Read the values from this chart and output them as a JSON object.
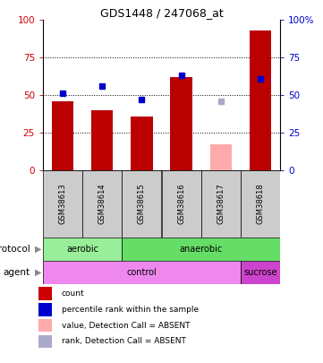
{
  "title": "GDS1448 / 247068_at",
  "samples": [
    "GSM38613",
    "GSM38614",
    "GSM38615",
    "GSM38616",
    "GSM38617",
    "GSM38618"
  ],
  "red_bars": [
    46,
    40,
    36,
    62,
    0,
    93
  ],
  "pink_bars": [
    0,
    0,
    0,
    0,
    17,
    0
  ],
  "blue_squares": [
    51,
    56,
    47,
    63,
    null,
    61
  ],
  "lavender_squares": [
    null,
    null,
    null,
    null,
    46,
    null
  ],
  "ylim": [
    0,
    100
  ],
  "yticks": [
    0,
    25,
    50,
    75,
    100
  ],
  "left_ytick_color": "#cc0000",
  "right_ytick_color": "#0000cc",
  "bar_color": "#bb0000",
  "pink_bar_color": "#ffaaaa",
  "blue_sq_color": "#0000cc",
  "lavender_sq_color": "#aaaacc",
  "protocol_aerobic_color": "#99ee99",
  "protocol_anaerobic_color": "#66dd66",
  "agent_control_color": "#ee88ee",
  "agent_sucrose_color": "#cc44cc",
  "sample_box_color": "#cccccc",
  "protocol_label": "protocol",
  "agent_label": "agent",
  "aerobic_label": "aerobic",
  "anaerobic_label": "anaerobic",
  "control_label": "control",
  "sucrose_label": "sucrose",
  "legend_items": [
    {
      "color": "#cc0000",
      "label": "count"
    },
    {
      "color": "#0000cc",
      "label": "percentile rank within the sample"
    },
    {
      "color": "#ffaaaa",
      "label": "value, Detection Call = ABSENT"
    },
    {
      "color": "#aaaacc",
      "label": "rank, Detection Call = ABSENT"
    }
  ],
  "right_ytick_labels": [
    "0",
    "25",
    "50",
    "75",
    "100%"
  ]
}
